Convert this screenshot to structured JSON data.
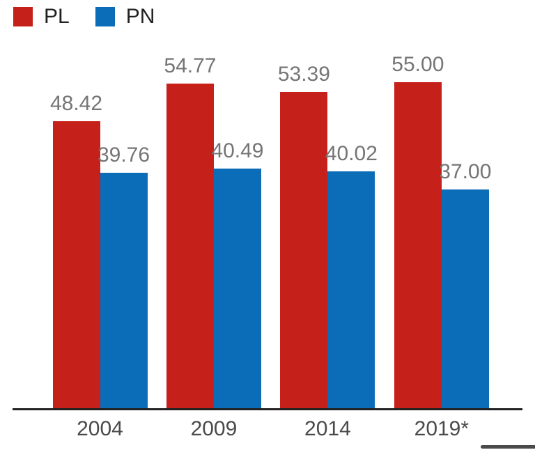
{
  "chart_data": {
    "type": "bar",
    "title": "",
    "xlabel": "",
    "ylabel": "",
    "categories": [
      "2004",
      "2009",
      "2014",
      "2019*"
    ],
    "series": [
      {
        "name": "PL",
        "color": "#c6201a",
        "values": [
          48.42,
          54.77,
          53.39,
          55.0
        ]
      },
      {
        "name": "PN",
        "color": "#0b6cb7",
        "values": [
          39.76,
          40.49,
          40.02,
          37.0
        ]
      }
    ],
    "value_label_decimals": 2,
    "value_label_color": "#757575",
    "category_label_color": "#4a4a4a",
    "axis_line_color": "#212121",
    "ylim": [
      0,
      60
    ],
    "grid": false,
    "legend_position": "top-left"
  },
  "legend": {
    "items": [
      {
        "label": "PL",
        "color": "#c6201a"
      },
      {
        "label": "PN",
        "color": "#0b6cb7"
      }
    ]
  },
  "decor": {
    "bottom_right_bar_color": "#4a4a4a"
  }
}
